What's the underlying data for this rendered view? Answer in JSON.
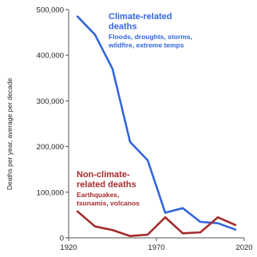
{
  "chart_data": {
    "type": "line",
    "ylabel": "Deaths per year, average per decade",
    "x_ticks": [
      "1920",
      "1970",
      "2020"
    ],
    "y_ticks": [
      "0",
      "100,000",
      "200,000",
      "300,000",
      "400,000",
      "500,000"
    ],
    "xlim": [
      1920,
      2020
    ],
    "ylim": [
      0,
      500000
    ],
    "x": [
      1925,
      1935,
      1945,
      1955,
      1965,
      1975,
      1985,
      1995,
      2005,
      2015
    ],
    "series": [
      {
        "name": "Climate-related deaths",
        "title_lines": [
          "Climate-related",
          "deaths"
        ],
        "sub_lines": [
          "Floods, droughts, storms,",
          "wildfire, extreme temps"
        ],
        "color": "#3366dd",
        "values": [
          485000,
          445000,
          370000,
          210000,
          170000,
          55000,
          65000,
          35000,
          32000,
          18000
        ]
      },
      {
        "name": "Non-climate-related deaths",
        "title_lines": [
          "Non-climate-",
          "related deaths"
        ],
        "sub_lines": [
          "Earthquakes,",
          "tsunamis, volcanos"
        ],
        "color": "#a52a2a",
        "values": [
          58000,
          25000,
          17000,
          4000,
          7000,
          45000,
          10000,
          12000,
          45000,
          28000
        ]
      }
    ],
    "grid": false,
    "legend": "inline"
  }
}
